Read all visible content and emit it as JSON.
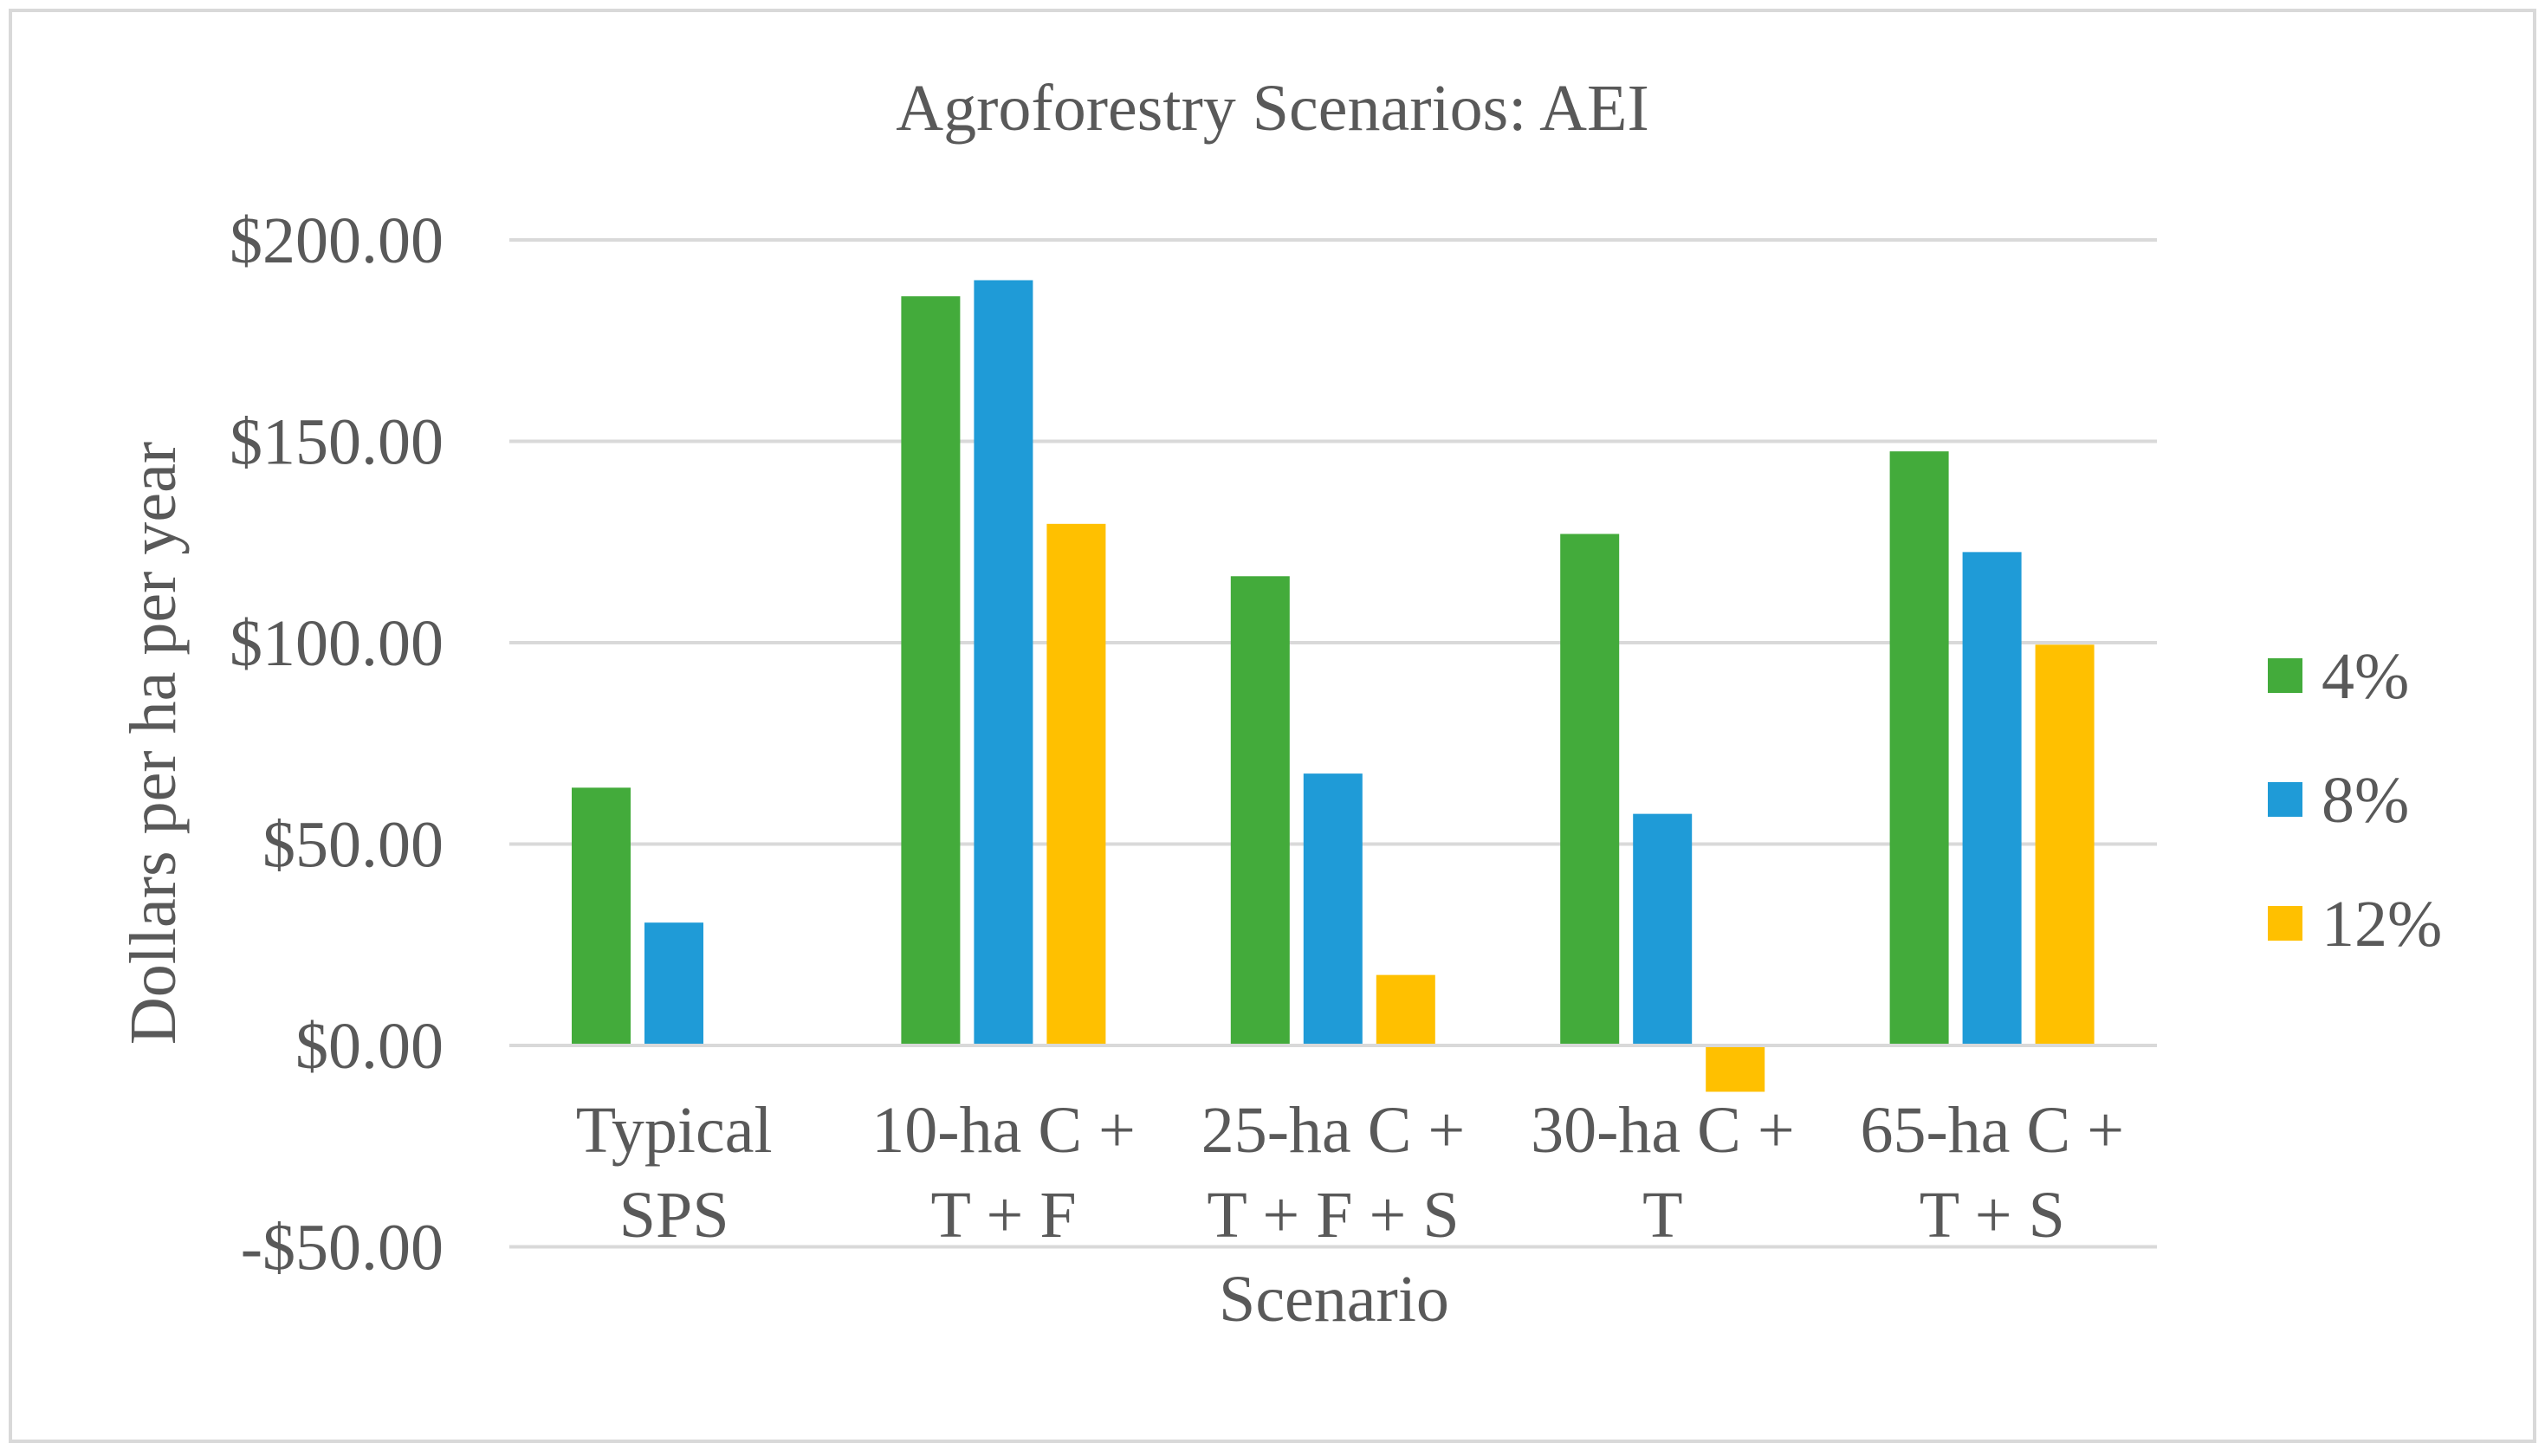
{
  "chart_data": {
    "type": "bar",
    "title": "Agroforestry Scenarios: AEI",
    "xlabel": "Scenario",
    "ylabel": "Dollars per ha per year",
    "ylim": [
      -50,
      200
    ],
    "yticks": [
      200,
      150,
      100,
      50,
      0,
      -50
    ],
    "ytick_labels": [
      "$200.00",
      "$150.00",
      "$100.00",
      "$50.00",
      "$0.00",
      "-$50.00"
    ],
    "grid": true,
    "legend_position": "right",
    "categories": [
      [
        "Typical",
        "SPS"
      ],
      [
        "10-ha C +",
        "T + F"
      ],
      [
        "25-ha C +",
        "T + F + S"
      ],
      [
        "30-ha C +",
        "T"
      ],
      [
        "65-ha C +",
        "T + S"
      ]
    ],
    "series": [
      {
        "name": "4%",
        "color": "#43ab3b",
        "values": [
          64,
          186,
          116.5,
          127,
          147.5
        ]
      },
      {
        "name": "8%",
        "color": "#1f9bd7",
        "values": [
          30.5,
          190,
          67.5,
          57.5,
          122.5
        ]
      },
      {
        "name": "12%",
        "color": "#ffc000",
        "values": [
          0,
          129.5,
          17.5,
          -11.5,
          99.5
        ]
      }
    ]
  }
}
